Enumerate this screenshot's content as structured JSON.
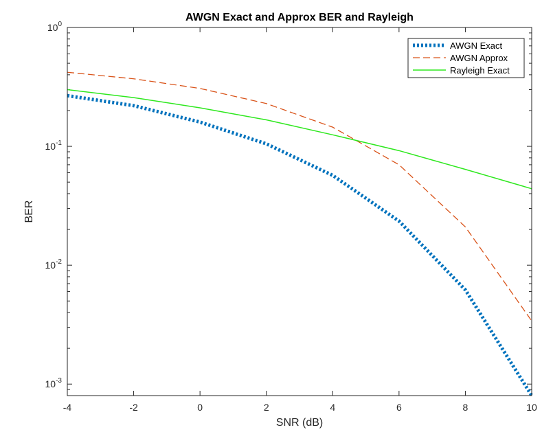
{
  "chart_data": {
    "type": "line",
    "title": "AWGN Exact and Approx BER and Rayleigh",
    "xlabel": "SNR (dB)",
    "ylabel": "BER",
    "yscale": "log",
    "xlim": [
      -4,
      10
    ],
    "ylim": [
      0.0008,
      1
    ],
    "xticks": [
      -4,
      -2,
      0,
      2,
      4,
      6,
      8,
      10
    ],
    "yticks": [
      {
        "value": 0.001,
        "base": "10",
        "exp": "-3"
      },
      {
        "value": 0.01,
        "base": "10",
        "exp": "-2"
      },
      {
        "value": 0.1,
        "base": "10",
        "exp": "-1"
      },
      {
        "value": 1,
        "base": "10",
        "exp": "0"
      }
    ],
    "legend_position": "top-right",
    "x": [
      -4,
      -2,
      0,
      2,
      4,
      6,
      8,
      10
    ],
    "series": [
      {
        "name": "AWGN Exact",
        "color": "#0072bd",
        "style": "dotted",
        "values": [
          0.267,
          0.22,
          0.16,
          0.105,
          0.057,
          0.0235,
          0.0062,
          0.0008
        ]
      },
      {
        "name": "AWGN Approx",
        "color": "#d95319",
        "style": "dashed",
        "values": [
          0.42,
          0.37,
          0.307,
          0.229,
          0.145,
          0.07,
          0.021,
          0.0034
        ]
      },
      {
        "name": "Rayleigh Exact",
        "color": "#2ee81e",
        "style": "solid",
        "values": [
          0.3,
          0.257,
          0.211,
          0.167,
          0.125,
          0.092,
          0.064,
          0.044
        ]
      }
    ]
  }
}
